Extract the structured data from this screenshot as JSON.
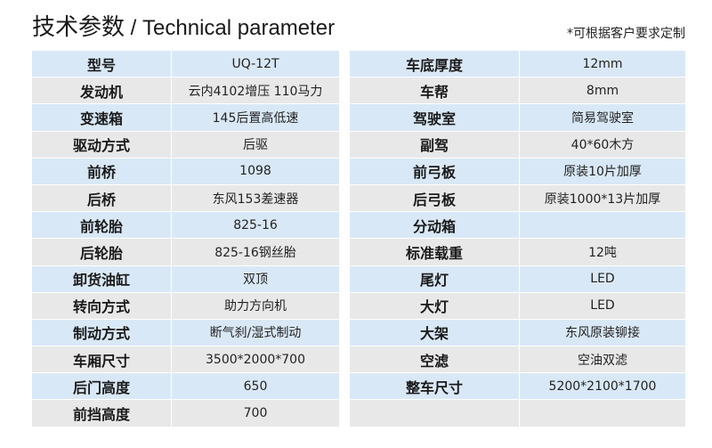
{
  "title": {
    "cn": "技术参数",
    "sep": " / ",
    "en": "Technical parameter"
  },
  "note": "*可根据客户要求定制",
  "left": [
    [
      "型号",
      "UQ-12T"
    ],
    [
      "发动机",
      "云内4102增压 110马力"
    ],
    [
      "变速箱",
      "145后置高低速"
    ],
    [
      "驱动方式",
      "后驱"
    ],
    [
      "前桥",
      "1098"
    ],
    [
      "后桥",
      "东风153差速器"
    ],
    [
      "前轮胎",
      "825-16"
    ],
    [
      "后轮胎",
      "825-16钢丝胎"
    ],
    [
      "卸货油缸",
      "双顶"
    ],
    [
      "转向方式",
      "助力方向机"
    ],
    [
      "制动方式",
      "断气刹/湿式制动"
    ],
    [
      "车厢尺寸",
      "3500*2000*700"
    ],
    [
      "后门高度",
      "650"
    ],
    [
      "前挡高度",
      "700"
    ]
  ],
  "right": [
    [
      "车底厚度",
      "12mm"
    ],
    [
      "车帮",
      "8mm"
    ],
    [
      "驾驶室",
      "简易驾驶室"
    ],
    [
      "副驾",
      "40*60木方"
    ],
    [
      "前弓板",
      "原装10片加厚"
    ],
    [
      "后弓板",
      "原装1000*13片加厚"
    ],
    [
      "分动箱",
      ""
    ],
    [
      "标准载重",
      "12吨"
    ],
    [
      "尾灯",
      "LED"
    ],
    [
      "大灯",
      "LED"
    ],
    [
      "大架",
      "东风原装铆接"
    ],
    [
      "空滤",
      "空油双滤"
    ],
    [
      "整车尺寸",
      "5200*2100*1700"
    ],
    [
      "",
      ""
    ]
  ]
}
